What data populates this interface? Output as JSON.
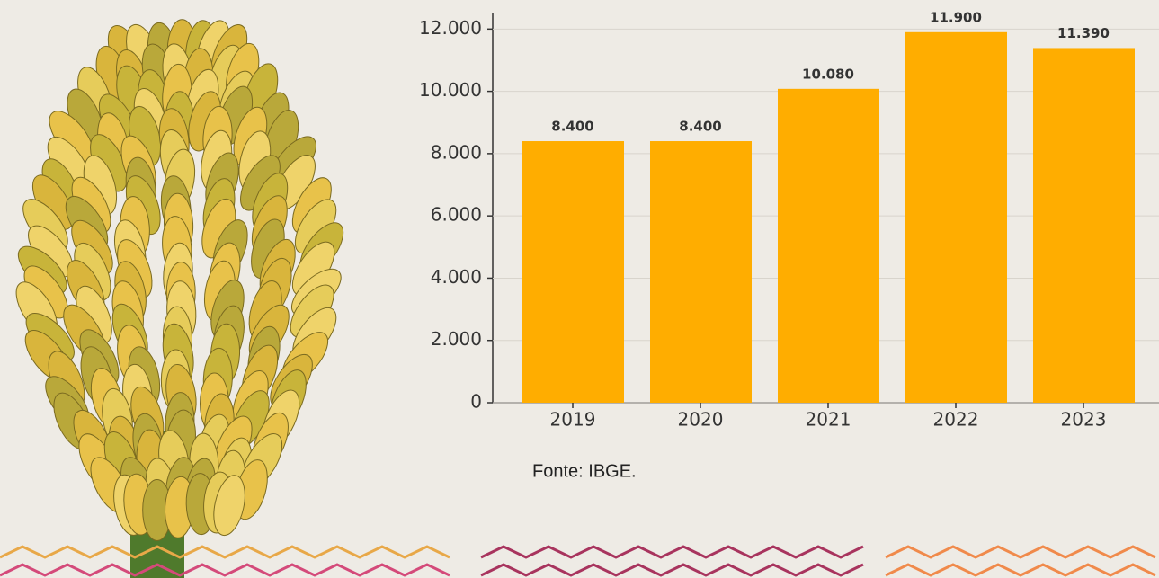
{
  "chart_data": {
    "type": "bar",
    "categories": [
      "2019",
      "2020",
      "2021",
      "2022",
      "2023"
    ],
    "values": [
      8400,
      8400,
      10080,
      11900,
      11390
    ],
    "value_labels": [
      "8.400",
      "8.400",
      "10.080",
      "11.900",
      "11.390"
    ],
    "color": "#ffad00",
    "ylim": [
      0,
      12500
    ],
    "yticks": [
      0,
      {
        "value": 2000,
        "label": "2.000"
      },
      {
        "value": 4000,
        "label": "4.000"
      },
      {
        "value": 6000,
        "label": "6.000"
      },
      {
        "value": 8000,
        "label": "8.000"
      },
      {
        "value": 10000,
        "label": "10.000"
      },
      {
        "value": 12000,
        "label": "12.000"
      }
    ],
    "grid": true,
    "source": "Fonte: IBGE."
  }
}
